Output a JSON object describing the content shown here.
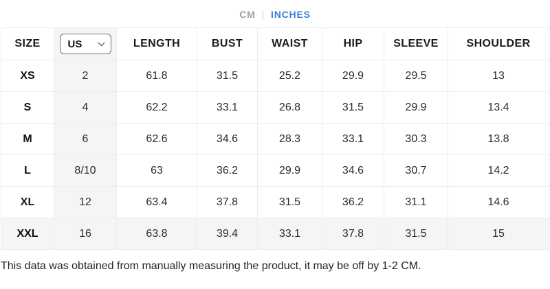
{
  "unit_toggle": {
    "cm_label": "CM",
    "separator": "|",
    "inches_label": "INCHES",
    "active": "INCHES",
    "active_color": "#3b7ed8",
    "inactive_color": "#9aa0a6"
  },
  "size_chart": {
    "columns": [
      "SIZE",
      "US",
      "LENGTH",
      "BUST",
      "WAIST",
      "HIP",
      "SLEEVE",
      "SHOULDER"
    ],
    "us_select": {
      "value": "US",
      "options": [
        "US"
      ]
    },
    "rows": [
      {
        "size": "XS",
        "values": [
          "2",
          "61.8",
          "31.5",
          "25.2",
          "29.9",
          "29.5",
          "13"
        ],
        "highlighted": false
      },
      {
        "size": "S",
        "values": [
          "4",
          "62.2",
          "33.1",
          "26.8",
          "31.5",
          "29.9",
          "13.4"
        ],
        "highlighted": false
      },
      {
        "size": "M",
        "values": [
          "6",
          "62.6",
          "34.6",
          "28.3",
          "33.1",
          "30.3",
          "13.8"
        ],
        "highlighted": false
      },
      {
        "size": "L",
        "values": [
          "8/10",
          "63",
          "36.2",
          "29.9",
          "34.6",
          "30.7",
          "14.2"
        ],
        "highlighted": false
      },
      {
        "size": "XL",
        "values": [
          "12",
          "63.4",
          "37.8",
          "31.5",
          "36.2",
          "31.1",
          "14.6"
        ],
        "highlighted": false
      },
      {
        "size": "XXL",
        "values": [
          "16",
          "63.8",
          "39.4",
          "33.1",
          "37.8",
          "31.5",
          "15"
        ],
        "highlighted": true
      }
    ]
  },
  "footnote": "This data was obtained from manually measuring the product, it may be off by 1-2 CM."
}
